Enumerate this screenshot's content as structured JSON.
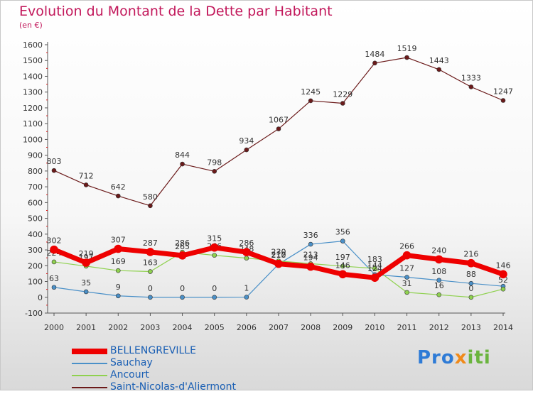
{
  "title": "Evolution du Montant de la Dette par Habitant",
  "subtitle": "(en €)",
  "logo": {
    "p1": "Pro",
    "p2": "x",
    "p3": "iti"
  },
  "chart_data": {
    "type": "line",
    "x": [
      "2000",
      "2001",
      "2002",
      "2003",
      "2004",
      "2005",
      "2006",
      "2007",
      "2008",
      "2009",
      "2010",
      "2011",
      "2012",
      "2013",
      "2014"
    ],
    "ylim": [
      -100,
      1600
    ],
    "yticks": [
      -100,
      0,
      100,
      200,
      300,
      400,
      500,
      600,
      700,
      800,
      900,
      1000,
      1100,
      1200,
      1300,
      1400,
      1500,
      1600
    ],
    "grid": false,
    "legend_position": "bottom-left",
    "series": [
      {
        "name": "Saint-Nicolas-d'Aliermont",
        "color": "#6b1a1a",
        "width": 1.2,
        "marker": 3,
        "values": [
          803,
          712,
          642,
          580,
          844,
          798,
          934,
          1067,
          1245,
          1229,
          1484,
          1519,
          1443,
          1333,
          1247
        ],
        "labels": [
          "803",
          "712",
          "642",
          "580",
          "844",
          "798",
          "934",
          "1067",
          "1245",
          "1229",
          "1484",
          "1519",
          "1443",
          "1333",
          "1247"
        ]
      },
      {
        "name": "Sauchay",
        "color": "#4a90c8",
        "width": 1.2,
        "marker": 3,
        "values": [
          63,
          35,
          9,
          0,
          0,
          0,
          1,
          210,
          336,
          356,
          144,
          127,
          108,
          88,
          70
        ],
        "labels": [
          "63",
          "35",
          "9",
          "0",
          "0",
          "0",
          "1",
          "210",
          "336",
          "356",
          "144",
          "127",
          "108",
          "88",
          ""
        ]
      },
      {
        "name": "Ancourt",
        "color": "#8fd14f",
        "width": 1.2,
        "marker": 3,
        "values": [
          224,
          197,
          169,
          163,
          286,
          266,
          248,
          230,
          213,
          197,
          183,
          31,
          16,
          0,
          52
        ],
        "labels": [
          "224",
          "197",
          "169",
          "163",
          "286",
          "266",
          "248",
          "230",
          "213",
          "197",
          "183",
          "31",
          "16",
          "0",
          "52"
        ]
      },
      {
        "name": "BELLENGREVILLE",
        "color": "#ee0000",
        "width": 7,
        "marker": 5.5,
        "values": [
          302,
          219,
          307,
          287,
          265,
          315,
          286,
          212,
          194,
          146,
          124,
          266,
          240,
          216,
          146
        ],
        "labels": [
          "302",
          "219",
          "307",
          "287",
          "265",
          "315",
          "286",
          "212",
          "194",
          "146",
          "124",
          "266",
          "240",
          "216",
          "146"
        ]
      }
    ],
    "legend": [
      "BELLENGREVILLE",
      "Sauchay",
      "Ancourt",
      "Saint-Nicolas-d'Aliermont"
    ]
  }
}
